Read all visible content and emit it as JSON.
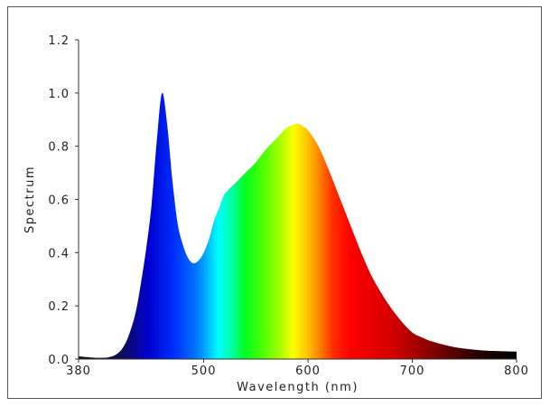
{
  "chart_data": {
    "type": "area",
    "title": "",
    "xlabel": "Wavelength (nm)",
    "ylabel": "Spectrum",
    "xlim": [
      380,
      800
    ],
    "ylim": [
      0,
      1.2
    ],
    "x_ticks": [
      "380",
      "500",
      "600",
      "700",
      "800"
    ],
    "y_ticks": [
      "0.0",
      "0.2",
      "0.4",
      "0.6",
      "0.8",
      "1.0",
      "1.2"
    ],
    "grid": false,
    "fill": "visible-spectrum gradient",
    "series": [
      {
        "x": [
          380,
          395,
          405,
          410,
          415,
          420,
          425,
          430,
          435,
          440,
          445,
          450,
          455,
          460,
          465,
          470,
          475,
          480,
          485,
          490,
          495,
          500,
          505,
          510,
          515,
          520,
          530,
          540,
          550,
          560,
          570,
          580,
          590,
          595,
          600,
          610,
          620,
          630,
          640,
          650,
          660,
          670,
          680,
          690,
          700,
          710,
          720,
          740,
          760,
          780,
          800
        ],
        "values": [
          0.01,
          0.005,
          0.005,
          0.008,
          0.015,
          0.03,
          0.06,
          0.11,
          0.18,
          0.29,
          0.42,
          0.58,
          0.82,
          1.0,
          0.88,
          0.67,
          0.51,
          0.43,
          0.38,
          0.36,
          0.37,
          0.4,
          0.45,
          0.52,
          0.57,
          0.62,
          0.66,
          0.7,
          0.74,
          0.79,
          0.83,
          0.87,
          0.885,
          0.875,
          0.86,
          0.8,
          0.71,
          0.61,
          0.51,
          0.41,
          0.32,
          0.25,
          0.19,
          0.14,
          0.1,
          0.08,
          0.065,
          0.045,
          0.035,
          0.03,
          0.028
        ]
      }
    ]
  }
}
